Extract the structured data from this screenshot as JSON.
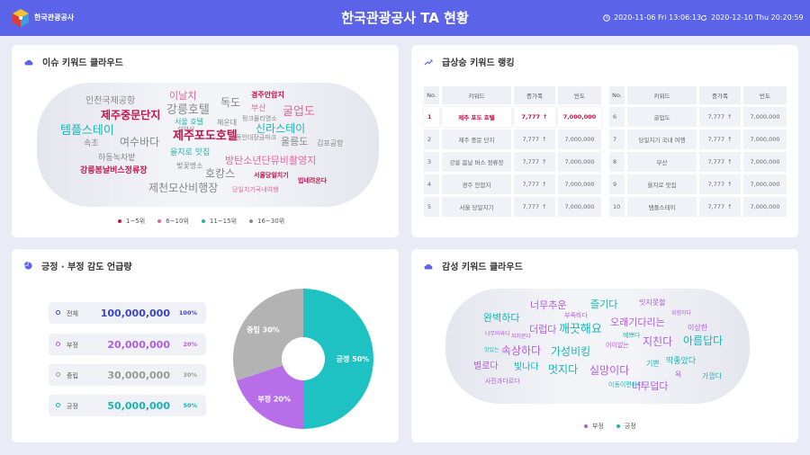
{
  "header": {
    "logo_text": "한국관광공사",
    "title": "한국관광공사 TA 현황",
    "start_date": "2020-11-06 Fri 13:06:13",
    "end_date": "2020-12-10 Thu 20:20:59"
  },
  "issue_cloud": {
    "title": "이슈 키워드 클라우드",
    "words": [
      {
        "text": "인천국제공항",
        "color": "#888888"
      },
      {
        "text": "이날치",
        "color": "#e0679b"
      },
      {
        "text": "독도",
        "color": "#888888"
      },
      {
        "text": "경주안압지",
        "color": "#c4124a"
      },
      {
        "text": "강릉호텔",
        "color": "#888888"
      },
      {
        "text": "부산",
        "color": "#e0679b"
      },
      {
        "text": "제주중문단지",
        "color": "#c4124a"
      },
      {
        "text": "굴업도",
        "color": "#e0679b"
      },
      {
        "text": "서울 호텔",
        "color": "#1cb3b3"
      },
      {
        "text": "해운대",
        "color": "#888888"
      },
      {
        "text": "핑크뮬리명소",
        "color": "#888888"
      },
      {
        "text": "템플스테이",
        "color": "#1cb3b3"
      },
      {
        "text": "설악산",
        "color": "#888888"
      },
      {
        "text": "제주포도호텔",
        "color": "#c4124a"
      },
      {
        "text": "신라스테이",
        "color": "#1cb3b3"
      },
      {
        "text": "여수바다",
        "color": "#888888"
      },
      {
        "text": "울릉도",
        "color": "#888888"
      },
      {
        "text": "속초",
        "color": "#888888"
      },
      {
        "text": "동인대장금파크",
        "color": "#888888"
      },
      {
        "text": "김포공항",
        "color": "#888888"
      },
      {
        "text": "을지로 맛집",
        "color": "#1cb3b3"
      },
      {
        "text": "하동녹차밭",
        "color": "#888888"
      },
      {
        "text": "방탄소년단뮤비촬영지",
        "color": "#e0679b"
      },
      {
        "text": "벚꽃명소",
        "color": "#888888"
      },
      {
        "text": "강릉봄날버스정류장",
        "color": "#c4124a"
      },
      {
        "text": "호캉스",
        "color": "#888888"
      },
      {
        "text": "서울당일치기",
        "color": "#c4124a"
      },
      {
        "text": "제천모산비행장",
        "color": "#888888"
      },
      {
        "text": "빕네려온다",
        "color": "#c4124a"
      },
      {
        "text": "당일치기국내여행",
        "color": "#e0679b"
      }
    ],
    "legend": [
      {
        "label": "1~5위",
        "color": "#c4124a"
      },
      {
        "label": "6~10위",
        "color": "#e0679b"
      },
      {
        "label": "11~15위",
        "color": "#1cb3b3"
      },
      {
        "label": "16~30위",
        "color": "#888888"
      }
    ]
  },
  "ranking": {
    "title": "급상승 키워드 랭킹",
    "headers": [
      "No.",
      "키워드",
      "증가폭",
      "빈도"
    ],
    "left": [
      {
        "no": "1",
        "keyword": "제주 포도 호텔",
        "inc": "7,777",
        "freq": "7,000,000"
      },
      {
        "no": "2",
        "keyword": "제주 중문 단지",
        "inc": "7,777",
        "freq": "7,000,000"
      },
      {
        "no": "3",
        "keyword": "강릉 봄날 버스 정류장",
        "inc": "7,777",
        "freq": "7,000,000"
      },
      {
        "no": "4",
        "keyword": "경주 안압지",
        "inc": "7,777",
        "freq": "7,000,000"
      },
      {
        "no": "5",
        "keyword": "서울 당일치기",
        "inc": "7,777",
        "freq": "7,000,000"
      }
    ],
    "right": [
      {
        "no": "6",
        "keyword": "굴업도",
        "inc": "7,777",
        "freq": "7,000,000"
      },
      {
        "no": "7",
        "keyword": "당일치기 국내 여행",
        "inc": "7,777",
        "freq": "7,000,000"
      },
      {
        "no": "8",
        "keyword": "부산",
        "inc": "7,777",
        "freq": "7,000,000"
      },
      {
        "no": "9",
        "keyword": "을지로 맛집",
        "inc": "7,777",
        "freq": "7,000,000"
      },
      {
        "no": "10",
        "keyword": "템플스테이",
        "inc": "7,777",
        "freq": "7,000,000"
      }
    ],
    "arrow": "↑"
  },
  "sentiment": {
    "title": "긍정 · 부정 감도 언급량",
    "rows": [
      {
        "label": "전체",
        "value": "100,000,000",
        "pct": "100%",
        "color": "#3a45c4"
      },
      {
        "label": "부정",
        "value": "20,000,000",
        "pct": "20%",
        "color": "#b05de0"
      },
      {
        "label": "중립",
        "value": "30,000,000",
        "pct": "30%",
        "color": "#999999"
      },
      {
        "label": "긍정",
        "value": "50,000,000",
        "pct": "50%",
        "color": "#1cb3b3"
      }
    ]
  },
  "chart_data": {
    "type": "pie",
    "slices": [
      {
        "label": "긍정 50%",
        "value": 50,
        "color": "#1ec2c2"
      },
      {
        "label": "부정 20%",
        "value": 20,
        "color": "#b76ee8"
      },
      {
        "label": "중립 30%",
        "value": 30,
        "color": "#b3b3b3"
      }
    ]
  },
  "emotion_cloud": {
    "title": "감성 키워드 클라우드",
    "words": [
      {
        "text": "너무추운",
        "color": "#b05de0"
      },
      {
        "text": "즐기다",
        "color": "#1cb3b3"
      },
      {
        "text": "밋지못할",
        "color": "#b05de0"
      },
      {
        "text": "완벽하다",
        "color": "#1cb3b3"
      },
      {
        "text": "부족하다",
        "color": "#b05de0"
      },
      {
        "text": "위험하다",
        "color": "#b05de0"
      },
      {
        "text": "더럽다",
        "color": "#b05de0"
      },
      {
        "text": "깨끗해요",
        "color": "#1cb3b3"
      },
      {
        "text": "오래기다리는",
        "color": "#b05de0"
      },
      {
        "text": "너무비싸다",
        "color": "#b05de0"
      },
      {
        "text": "지저분다",
        "color": "#b05de0"
      },
      {
        "text": "예쁘다",
        "color": "#1cb3b3"
      },
      {
        "text": "이상한",
        "color": "#b05de0"
      },
      {
        "text": "맛있는",
        "color": "#1cb3b3"
      },
      {
        "text": "속상하다",
        "color": "#b05de0"
      },
      {
        "text": "가성비킹",
        "color": "#1cb3b3"
      },
      {
        "text": "어이없는",
        "color": "#b05de0"
      },
      {
        "text": "지친다",
        "color": "#b05de0"
      },
      {
        "text": "아름답다",
        "color": "#1cb3b3"
      },
      {
        "text": "별로다",
        "color": "#b05de0"
      },
      {
        "text": "빛나다",
        "color": "#1cb3b3"
      },
      {
        "text": "멋지다",
        "color": "#1cb3b3"
      },
      {
        "text": "실망이다",
        "color": "#b05de0"
      },
      {
        "text": "기쁜",
        "color": "#1cb3b3"
      },
      {
        "text": "딱좋았다",
        "color": "#1cb3b3"
      },
      {
        "text": "욕",
        "color": "#b05de0"
      },
      {
        "text": "가깝다",
        "color": "#1cb3b3"
      },
      {
        "text": "사진과다르다",
        "color": "#b05de0"
      },
      {
        "text": "이동이편하다",
        "color": "#1cb3b3"
      },
      {
        "text": "너무덥다",
        "color": "#b05de0"
      }
    ],
    "legend": [
      {
        "label": "부정",
        "color": "#b05de0"
      },
      {
        "label": "긍정",
        "color": "#1cb3b3"
      }
    ]
  }
}
